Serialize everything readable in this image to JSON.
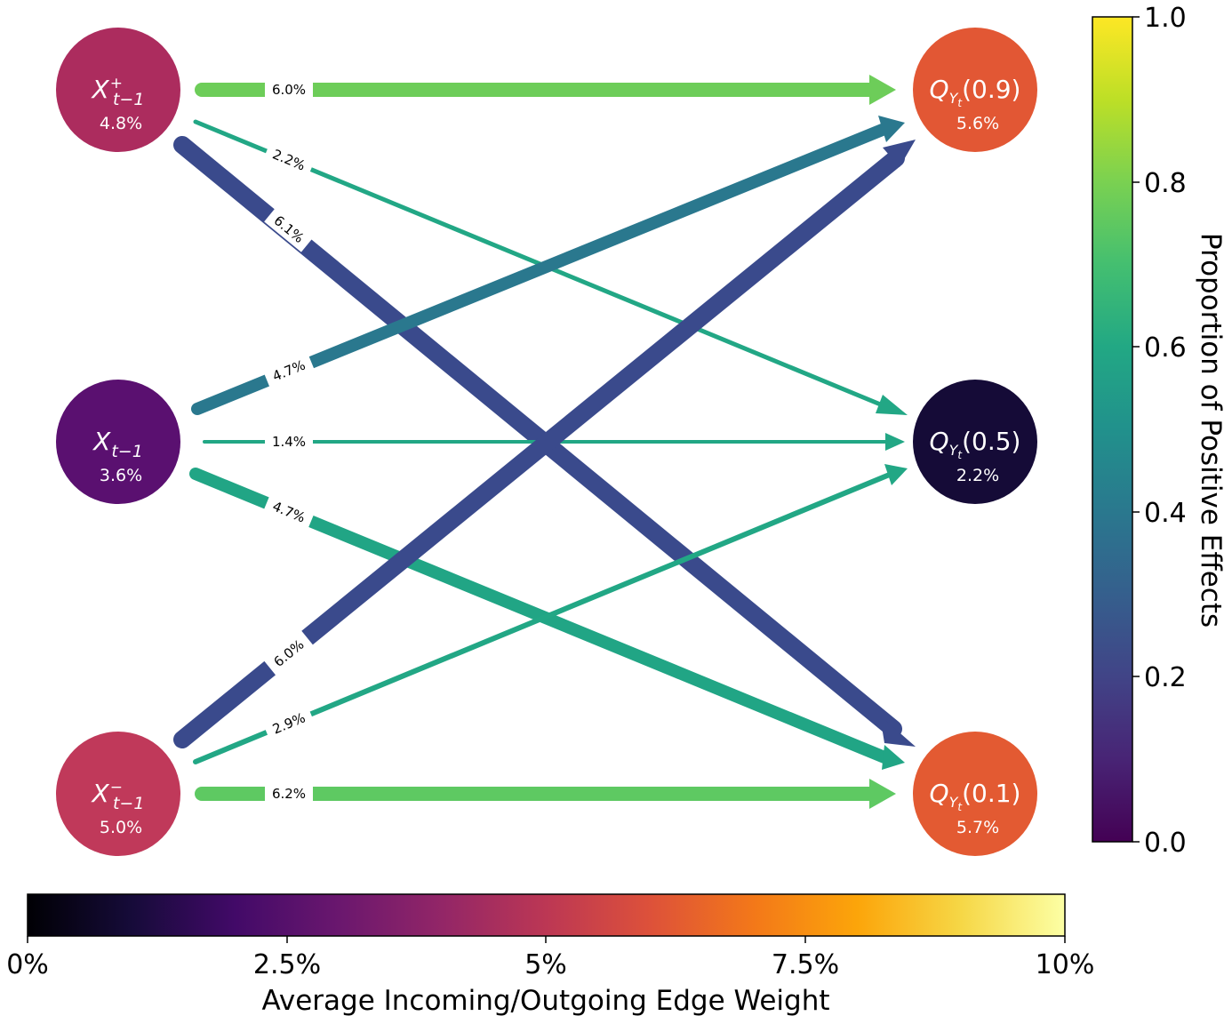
{
  "nodes": {
    "x_plus": {
      "symbol": "X",
      "sup": "+",
      "sub": "t−1",
      "value": "4.8%",
      "color": "#ac2c5e"
    },
    "x": {
      "symbol": "X",
      "sup": "",
      "sub": "t−1",
      "value": "3.6%",
      "color": "#5a1070"
    },
    "x_minus": {
      "symbol": "X",
      "sup": "−",
      "sub": "t−1",
      "value": "5.0%",
      "color": "#c0395a"
    },
    "q09": {
      "symbol": "Q",
      "sub": "Y",
      "subsub": "t",
      "arg": "(0.9)",
      "value": "5.6%",
      "color": "#e25734"
    },
    "q05": {
      "symbol": "Q",
      "sub": "Y",
      "subsub": "t",
      "arg": "(0.5)",
      "value": "2.2%",
      "color": "#150b37"
    },
    "q01": {
      "symbol": "Q",
      "sub": "Y",
      "subsub": "t",
      "arg": "(0.1)",
      "value": "5.7%",
      "color": "#e35a32"
    }
  },
  "edges": [
    {
      "id": "xp-q09",
      "from": "x_plus",
      "to": "q09",
      "label": "6.0%",
      "color": "#6dcd59"
    },
    {
      "id": "xp-q05",
      "from": "x_plus",
      "to": "q05",
      "label": "2.2%",
      "color": "#22a785"
    },
    {
      "id": "xp-q01",
      "from": "x_plus",
      "to": "q01",
      "label": "6.1%",
      "color": "#3a4a8c"
    },
    {
      "id": "x-q09",
      "from": "x",
      "to": "q09",
      "label": "4.7%",
      "color": "#2a788e"
    },
    {
      "id": "x-q05",
      "from": "x",
      "to": "q05",
      "label": "1.4%",
      "color": "#22a785"
    },
    {
      "id": "x-q01",
      "from": "x",
      "to": "q01",
      "label": "4.7%",
      "color": "#21a585"
    },
    {
      "id": "xm-q09",
      "from": "x_minus",
      "to": "q09",
      "label": "6.0%",
      "color": "#3a4a8c"
    },
    {
      "id": "xm-q05",
      "from": "x_minus",
      "to": "q05",
      "label": "2.9%",
      "color": "#22a785"
    },
    {
      "id": "xm-q01",
      "from": "x_minus",
      "to": "q01",
      "label": "6.2%",
      "color": "#5ec962"
    }
  ],
  "right_colorbar": {
    "label": "Proportion of Positive Effects",
    "ticks": [
      "0.0",
      "0.2",
      "0.4",
      "0.6",
      "0.8",
      "1.0"
    ],
    "colormap": "viridis"
  },
  "bottom_colorbar": {
    "label": "Average Incoming/Outgoing Edge Weight",
    "ticks": [
      "0%",
      "2.5%",
      "5%",
      "7.5%",
      "10%"
    ],
    "colormap": "inferno"
  }
}
